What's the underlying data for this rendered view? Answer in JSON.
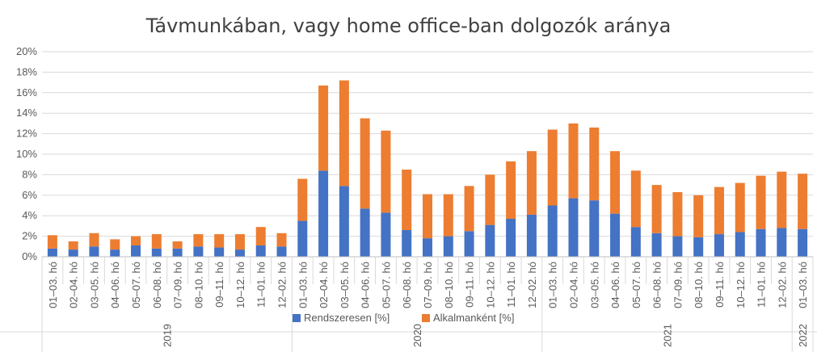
{
  "chart_data": {
    "type": "bar",
    "stacked": true,
    "title": "Távmunkában, vagy home office-ban dolgozók aránya",
    "xlabel": "",
    "ylabel": "",
    "ylim": [
      0,
      20
    ],
    "y_ticks": [
      "0%",
      "2%",
      "4%",
      "6%",
      "8%",
      "10%",
      "12%",
      "14%",
      "16%",
      "18%",
      "20%"
    ],
    "grid": true,
    "legend_position": "bottom",
    "categories": [
      "01–03. hó",
      "02–04. hó",
      "03–05. hó",
      "04–06. hó",
      "05–07. hó",
      "06–08. hó",
      "07–09. hó",
      "08–10. hó",
      "09–11. hó",
      "10–12. hó",
      "11–01. hó",
      "12–02. hó",
      "01–03. hó",
      "02–04. hó",
      "03–05. hó",
      "04–06. hó",
      "05–07. hó",
      "06–08. hó",
      "07–09. hó",
      "08–10. hó",
      "09–11. hó",
      "10–12. hó",
      "11–01. hó",
      "12–02. hó",
      "01–03. hó",
      "02–04. hó",
      "03–05. hó",
      "04–06. hó",
      "05–07. hó",
      "06–08. hó",
      "07–09. hó",
      "08–10. hó",
      "09–11. hó",
      "10–12. hó",
      "11–01. hó",
      "12–02. hó",
      "01–03. hó"
    ],
    "year_groups": [
      {
        "label": "2019",
        "start": 0,
        "count": 12
      },
      {
        "label": "2020",
        "start": 12,
        "count": 12
      },
      {
        "label": "2021",
        "start": 24,
        "count": 12
      },
      {
        "label": "2022",
        "start": 36,
        "count": 1
      }
    ],
    "series": [
      {
        "name": "Rendszeresen [%]",
        "color": "#4472C4",
        "values": [
          0.8,
          0.7,
          1.0,
          0.7,
          1.1,
          0.8,
          0.8,
          1.0,
          0.9,
          0.7,
          1.1,
          1.0,
          3.5,
          8.4,
          6.9,
          4.7,
          4.3,
          2.6,
          1.8,
          2.0,
          2.5,
          3.1,
          3.7,
          4.1,
          5.0,
          5.7,
          5.5,
          4.2,
          2.9,
          2.3,
          2.0,
          1.9,
          2.2,
          2.4,
          2.7,
          2.8,
          2.7
        ]
      },
      {
        "name": "Alkalmanként [%]",
        "color": "#ED7D31",
        "values": [
          1.3,
          0.8,
          1.3,
          1.0,
          0.9,
          1.4,
          0.7,
          1.2,
          1.3,
          1.5,
          1.8,
          1.3,
          4.1,
          8.3,
          10.3,
          8.8,
          8.0,
          5.9,
          4.3,
          4.1,
          4.4,
          4.9,
          5.6,
          6.2,
          7.4,
          7.3,
          7.1,
          6.1,
          5.5,
          4.7,
          4.3,
          4.1,
          4.6,
          4.8,
          5.2,
          5.5,
          5.4
        ]
      }
    ]
  }
}
